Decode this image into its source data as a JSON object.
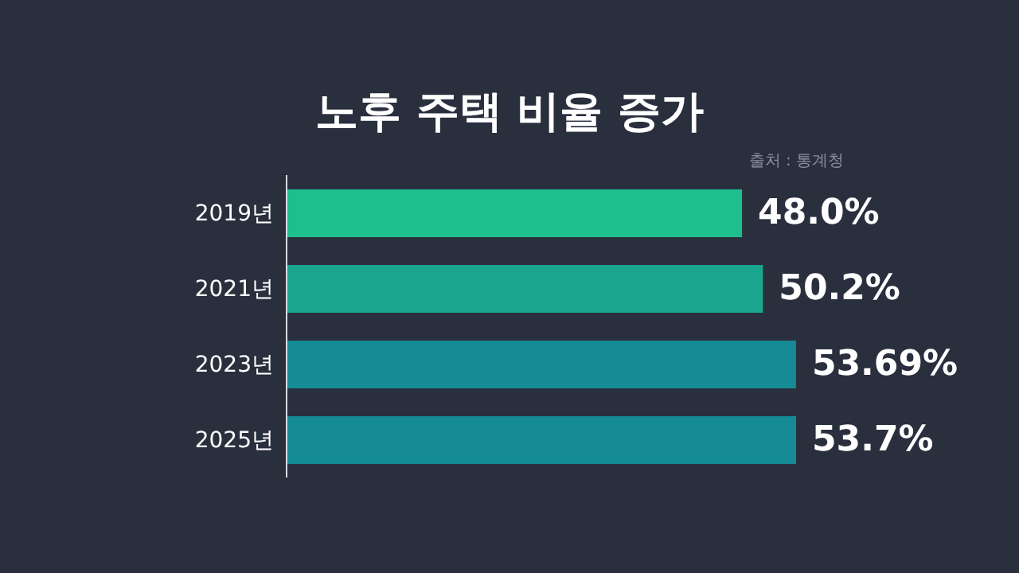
{
  "chart_data": {
    "type": "bar",
    "orientation": "horizontal",
    "title": "노후 주택 비율 증가",
    "annotations": [
      "출처 : 통계청"
    ],
    "categories": [
      "2019년",
      "2021년",
      "2023년",
      "2025년"
    ],
    "values": [
      48.0,
      50.2,
      53.69,
      53.7
    ],
    "colors": [
      "#1dbf8c",
      "#1aa58e",
      "#158c95",
      "#158c95"
    ],
    "value_labels": [
      "48.0%",
      "50.2%",
      "53.69%",
      "53.7%"
    ],
    "tick_labels": "y"
  }
}
